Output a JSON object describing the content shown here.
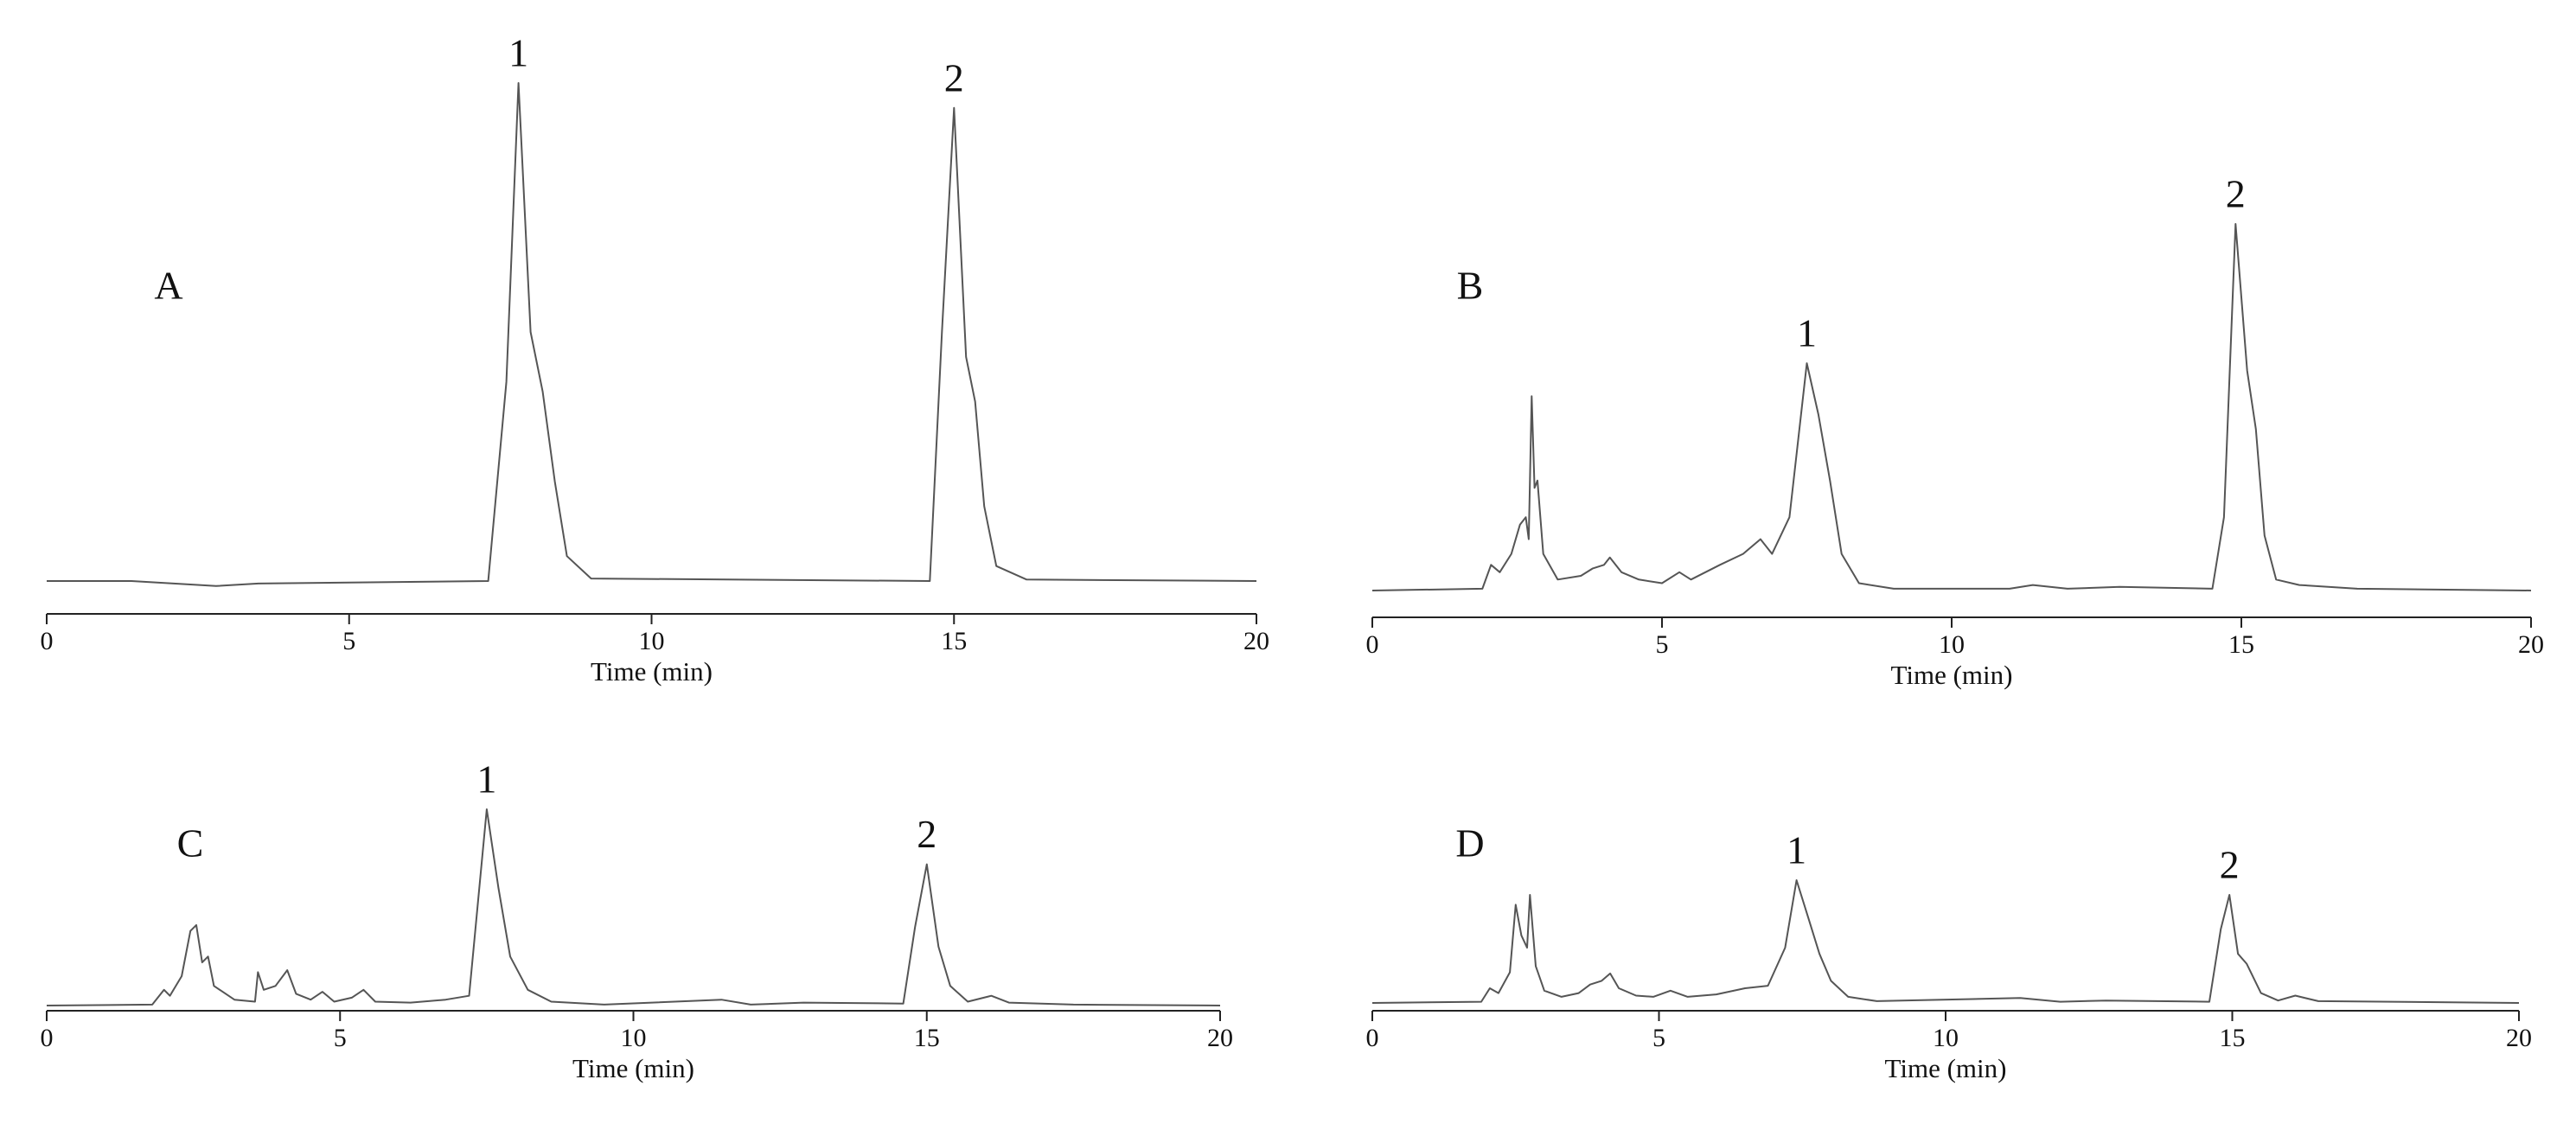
{
  "chart_data": [
    {
      "type": "line",
      "panel_label": "A",
      "xlabel": "Time (min)",
      "color": "#555555",
      "xlim": [
        0,
        20
      ],
      "xticks": [
        0,
        5,
        10,
        15,
        20
      ],
      "ylim": [
        0,
        100
      ],
      "x": [
        0,
        1.4,
        2.8,
        3.5,
        7.3,
        7.6,
        7.8,
        8.0,
        8.2,
        8.4,
        8.6,
        9,
        14.6,
        14.8,
        15.0,
        15.2,
        15.35,
        15.5,
        15.7,
        16.2,
        20
      ],
      "values": [
        0,
        0,
        -1,
        -0.5,
        0,
        40,
        100,
        50,
        38,
        20,
        5,
        0.5,
        0,
        50,
        95,
        45,
        36,
        15,
        3,
        0.3,
        0
      ],
      "peaks": [
        {
          "label": "1",
          "x": 7.8
        },
        {
          "label": "2",
          "x": 15.0
        }
      ]
    },
    {
      "type": "line",
      "panel_label": "B",
      "xlabel": "Time (min)",
      "color": "#555555",
      "xlim": [
        0,
        20
      ],
      "xticks": [
        0,
        5,
        10,
        15,
        20
      ],
      "ylim": [
        0,
        100
      ],
      "x": [
        0,
        1.9,
        2.05,
        2.2,
        2.4,
        2.55,
        2.65,
        2.7,
        2.75,
        2.8,
        2.85,
        2.95,
        3.2,
        3.6,
        3.8,
        4.0,
        4.1,
        4.3,
        4.6,
        5.0,
        5.3,
        5.5,
        6.0,
        6.4,
        6.7,
        6.9,
        7.2,
        7.5,
        7.7,
        7.9,
        8.1,
        8.4,
        9,
        11,
        11.4,
        12,
        12.9,
        14.5,
        14.7,
        14.9,
        15.1,
        15.25,
        15.4,
        15.6,
        16,
        17,
        20
      ],
      "values": [
        0,
        0.5,
        7,
        5,
        10,
        18,
        20,
        14,
        53,
        28,
        30,
        10,
        3,
        4,
        6,
        7,
        9,
        5,
        3,
        2,
        5,
        3,
        7,
        10,
        14,
        10,
        20,
        62,
        48,
        30,
        10,
        2,
        0.5,
        0.5,
        1.5,
        0.5,
        1,
        0.5,
        20,
        100,
        60,
        44,
        15,
        3,
        1.5,
        0.5,
        0
      ],
      "peaks": [
        {
          "label": "1",
          "x": 7.5
        },
        {
          "label": "2",
          "x": 14.9
        }
      ]
    },
    {
      "type": "line",
      "panel_label": "C",
      "xlabel": "Time (min)",
      "color": "#555555",
      "xlim": [
        0,
        20
      ],
      "xticks": [
        0,
        5,
        10,
        15,
        20
      ],
      "ylim": [
        0,
        100
      ],
      "x": [
        0,
        1.8,
        2.0,
        2.1,
        2.3,
        2.45,
        2.55,
        2.65,
        2.75,
        2.85,
        3.2,
        3.55,
        3.6,
        3.7,
        3.9,
        4.1,
        4.25,
        4.5,
        4.7,
        4.9,
        5.2,
        5.4,
        5.6,
        6.2,
        6.8,
        7.2,
        7.5,
        7.7,
        7.9,
        8.2,
        8.6,
        9.5,
        11.5,
        12,
        12.9,
        14.6,
        14.8,
        15.0,
        15.2,
        15.4,
        15.7,
        16.1,
        16.4,
        17.5,
        20
      ],
      "values": [
        0,
        0.5,
        8,
        5,
        15,
        38,
        41,
        22,
        25,
        10,
        3,
        2,
        17,
        8,
        10,
        18,
        6,
        3,
        7,
        2,
        4,
        8,
        2,
        1.5,
        3,
        5,
        100,
        60,
        25,
        8,
        2,
        0.5,
        3,
        0.5,
        1.5,
        1,
        40,
        72,
        30,
        10,
        2,
        5,
        1.5,
        0.5,
        0
      ],
      "peaks": [
        {
          "label": "1",
          "x": 7.5
        },
        {
          "label": "2",
          "x": 15.0
        }
      ]
    },
    {
      "type": "line",
      "panel_label": "D",
      "xlabel": "Time (min)",
      "color": "#555555",
      "xlim": [
        0,
        20
      ],
      "xticks": [
        0,
        5,
        10,
        15,
        20
      ],
      "ylim": [
        0,
        100
      ],
      "x": [
        0,
        1.9,
        2.05,
        2.2,
        2.4,
        2.5,
        2.6,
        2.7,
        2.75,
        2.85,
        3.0,
        3.3,
        3.6,
        3.8,
        4.0,
        4.15,
        4.3,
        4.6,
        4.9,
        5.2,
        5.5,
        6.0,
        6.5,
        6.9,
        7.2,
        7.4,
        7.6,
        7.8,
        8.0,
        8.3,
        8.8,
        11.3,
        12,
        12.8,
        14.6,
        14.8,
        14.95,
        15.1,
        15.25,
        15.5,
        15.8,
        16.1,
        16.5,
        20
      ],
      "values": [
        0,
        1,
        12,
        8,
        25,
        80,
        55,
        45,
        88,
        30,
        10,
        5,
        8,
        15,
        18,
        24,
        12,
        6,
        5,
        10,
        5,
        7,
        12,
        14,
        45,
        100,
        70,
        40,
        18,
        5,
        1.5,
        4,
        1,
        2,
        1,
        60,
        88,
        40,
        32,
        8,
        2,
        6,
        1.5,
        0
      ],
      "peaks": [
        {
          "label": "1",
          "x": 7.4
        },
        {
          "label": "2",
          "x": 14.95
        }
      ]
    }
  ]
}
